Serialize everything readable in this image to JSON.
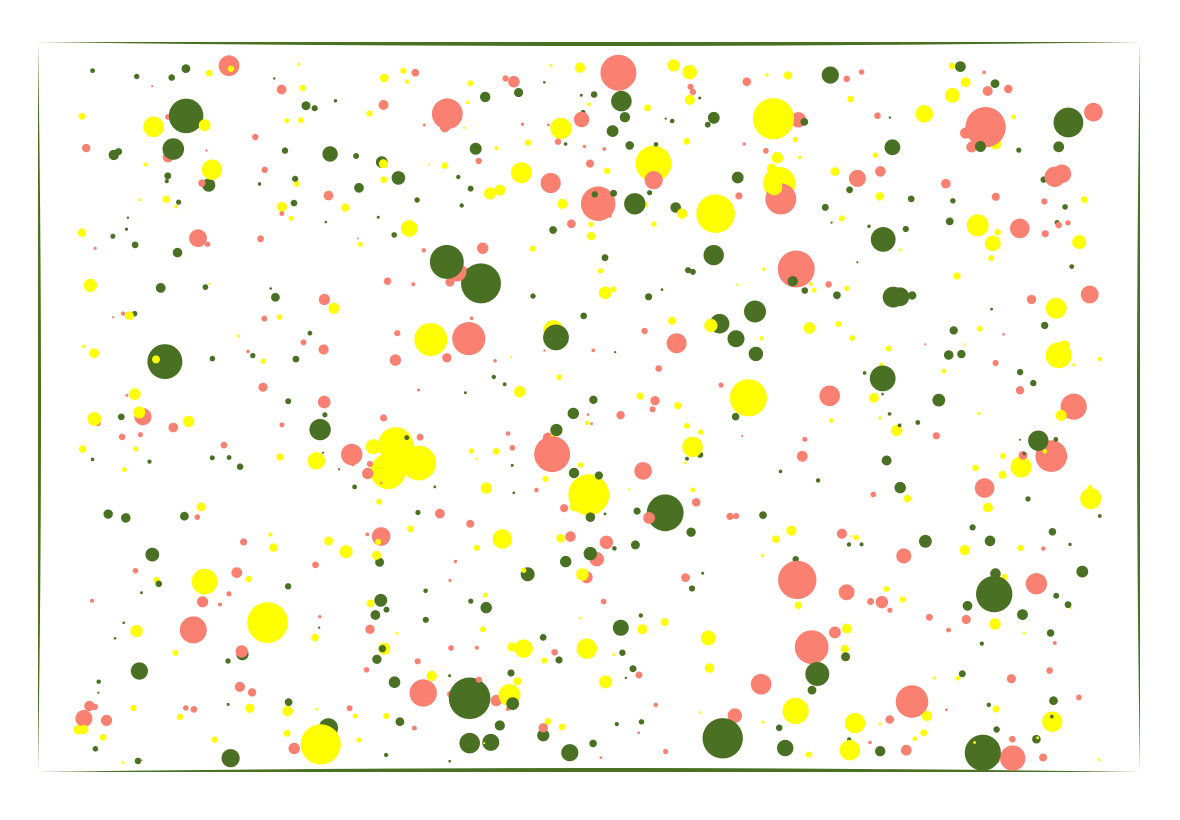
{
  "colors": {
    "background": "#ffffff",
    "frame": "#4a7023",
    "palette": [
      "#4a7023",
      "#fa8072",
      "#ffff00"
    ]
  },
  "random_seed": 20240611,
  "dot_count": 780
}
